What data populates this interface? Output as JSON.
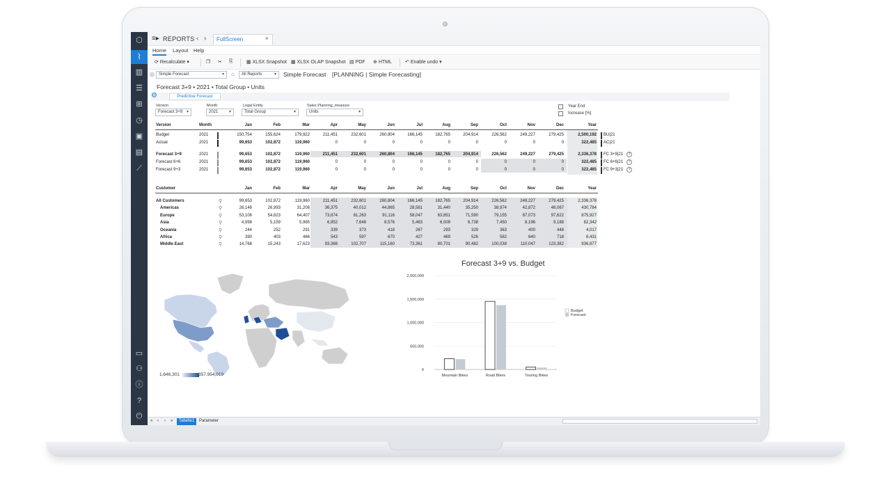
{
  "app": {
    "title": "REPORTS",
    "tab": "FullScreen",
    "tab_close": "×",
    "nav_back": "‹",
    "nav_forward": "›",
    "menu_icon": "≡▸"
  },
  "menubar": {
    "items": [
      "Home",
      "Layout",
      "Help"
    ]
  },
  "toolbar": {
    "recalculate": "Recalculate",
    "xlsx_snapshot": "XLSX Snapshot",
    "xlsx_olap_snapshot": "XLSX OLAP Snapshot",
    "pdf": "PDF",
    "html": "HTML",
    "enable_undo": "Enable undo"
  },
  "report_selector": {
    "report": "Simple Forecast",
    "scope": "All Reports",
    "name": "Simple Forecast",
    "path": "[PLANNING | Simple Forecasting]"
  },
  "subtitle": "Forecast 3+9 • 2021 • Total Group • Units",
  "predictive_button": "Predictive Forecast",
  "filters": [
    {
      "label": "Version",
      "value": "Forecast 3+9"
    },
    {
      "label": "Month",
      "value": "2021"
    },
    {
      "label": "Legal Entity",
      "value": "Total Group"
    },
    {
      "label": "Sales Planning_measure",
      "value": "Units"
    }
  ],
  "checkboxes": [
    "Year End",
    "Increase [%]"
  ],
  "version_table": {
    "headers": [
      "Version",
      "Month",
      "Jan",
      "Feb",
      "Mar",
      "Apr",
      "May",
      "Jun",
      "Jul",
      "Aug",
      "Sep",
      "Oct",
      "Nov",
      "Dec",
      "Year"
    ],
    "rows": [
      {
        "version": "Budget",
        "month": "2021",
        "values": [
          "150,754",
          "155,624",
          "179,922",
          "211,451",
          "232,601",
          "260,804",
          "166,145",
          "182,765",
          "204,914",
          "226,562",
          "249,227",
          "279,425",
          "2,500,192"
        ],
        "tag": "BU|21",
        "bold": false
      },
      {
        "version": "Actual",
        "month": "2021",
        "values": [
          "99,653",
          "102,872",
          "119,960",
          "0",
          "0",
          "0",
          "0",
          "0",
          "0",
          "0",
          "0",
          "0",
          "322,485"
        ],
        "tag": "AC|21",
        "bold": false
      },
      {
        "version": "Forecast 3+9",
        "month": "2021",
        "values": [
          "99,653",
          "102,872",
          "119,960",
          "211,451",
          "232,601",
          "260,804",
          "166,145",
          "182,765",
          "204,914",
          "226,562",
          "249,227",
          "279,425",
          "2,336,378"
        ],
        "tag": "FC 3+9|21",
        "bold": true
      },
      {
        "version": "Forecast 6+6",
        "month": "2021",
        "values": [
          "99,653",
          "102,872",
          "119,960",
          "0",
          "0",
          "0",
          "0",
          "0",
          "0",
          "0",
          "0",
          "0",
          "322,485"
        ],
        "tag": "FC 6+6|21",
        "bold": false
      },
      {
        "version": "Forecast 9+3",
        "month": "2021",
        "values": [
          "99,653",
          "102,872",
          "119,960",
          "0",
          "0",
          "0",
          "0",
          "0",
          "0",
          "0",
          "0",
          "0",
          "322,485"
        ],
        "tag": "FC 9+3|21",
        "bold": false
      }
    ],
    "help_icon": "?"
  },
  "customer_table": {
    "headers": [
      "Customer",
      "Jan",
      "Feb",
      "Mar",
      "Apr",
      "May",
      "Jun",
      "Jul",
      "Aug",
      "Sep",
      "Oct",
      "Nov",
      "Dec",
      "Year"
    ],
    "rows": [
      {
        "name": "All Customers",
        "values": [
          "99,653",
          "102,872",
          "119,960",
          "211,451",
          "232,601",
          "260,804",
          "166,145",
          "182,765",
          "204,914",
          "226,562",
          "249,227",
          "279,425",
          "2,336,378"
        ]
      },
      {
        "name": "Americas",
        "values": [
          "26,148",
          "26,993",
          "31,208",
          "36,375",
          "40,012",
          "44,865",
          "28,581",
          "31,440",
          "35,250",
          "38,974",
          "42,872",
          "48,067",
          "430,784"
        ]
      },
      {
        "name": "Europe",
        "values": [
          "53,106",
          "54,823",
          "64,407",
          "73,874",
          "81,263",
          "91,116",
          "58,047",
          "63,851",
          "71,590",
          "79,155",
          "87,073",
          "97,622",
          "875,927"
        ]
      },
      {
        "name": "Asia",
        "values": [
          "4,998",
          "5,159",
          "5,965",
          "6,952",
          "7,648",
          "8,576",
          "5,463",
          "6,009",
          "6,738",
          "7,450",
          "8,196",
          "9,188",
          "82,342"
        ]
      },
      {
        "name": "Oceania",
        "values": [
          "244",
          "252",
          "291",
          "339",
          "373",
          "418",
          "267",
          "293",
          "329",
          "363",
          "400",
          "448",
          "4,017"
        ]
      },
      {
        "name": "Africa",
        "values": [
          "390",
          "403",
          "466",
          "543",
          "597",
          "670",
          "427",
          "469",
          "526",
          "582",
          "640",
          "718",
          "6,431"
        ]
      },
      {
        "name": "Middle East",
        "values": [
          "14,766",
          "15,243",
          "17,623",
          "93,368",
          "102,707",
          "115,160",
          "73,361",
          "80,701",
          "90,482",
          "100,038",
          "110,047",
          "123,382",
          "936,877"
        ]
      }
    ]
  },
  "map": {
    "legend_min": "1,646,301",
    "legend_max": "357,954,019",
    "colors": {
      "dark": "#1f4e96",
      "mid": "#7d9cc9",
      "light": "#c9d6ea",
      "gray": "#cfcfcf"
    }
  },
  "chart_data": {
    "type": "bar",
    "title": "Forecast 3+9 vs. Budget",
    "categories": [
      "Mountain Bikes",
      "Road Bikes",
      "Touring Bikes"
    ],
    "series": [
      {
        "name": "Budget",
        "values": [
          230000,
          1450000,
          50000
        ]
      },
      {
        "name": "Forecast",
        "values": [
          220000,
          1370000,
          40000
        ]
      }
    ],
    "yticks": [
      "2,000,000",
      "1,500,000",
      "1,000,000",
      "500,000",
      "0"
    ],
    "ylim": [
      0,
      2000000
    ],
    "legend": "right"
  },
  "footer": {
    "nav": [
      "«",
      "‹",
      "›",
      "»"
    ],
    "tabs": [
      "Tabelle1",
      "Parameter"
    ]
  },
  "sidebar": {
    "icons": [
      "logo-icon",
      "analytics-icon",
      "report-icon",
      "list-icon",
      "model-icon",
      "timer-icon",
      "calendar-icon",
      "briefcase-icon",
      "tools-icon",
      "chat-icon",
      "user-icon",
      "info-icon",
      "help-icon",
      "power-icon"
    ]
  }
}
